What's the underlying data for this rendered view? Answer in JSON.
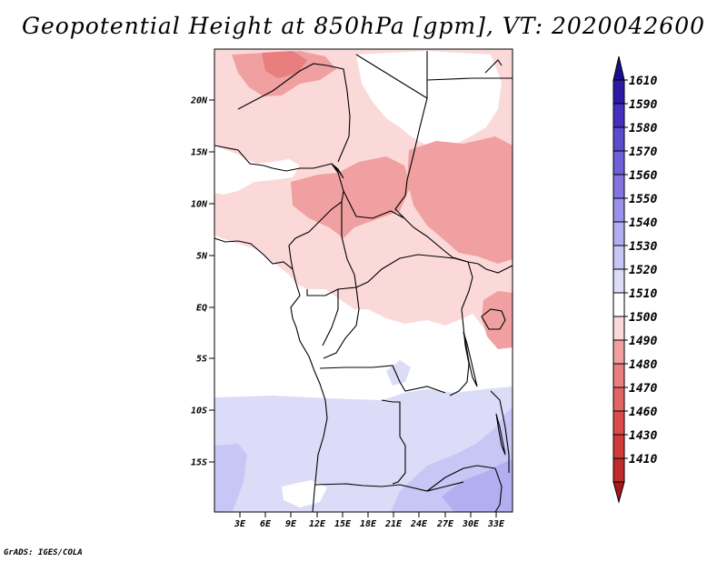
{
  "title": "Geopotential Height at 850hPa [gpm], VT: 2020042600",
  "credit": "GrADS: IGES/COLA",
  "colors": {
    "frame": "#000000",
    "c1410": "#a8171a",
    "c1430": "#bf2a2a",
    "c1440": "#d33a3a",
    "c1460": "#de4a4a",
    "c1470": "#e26464",
    "c1480": "#e97e7e",
    "c1490": "#f0a0a0",
    "c1500": "#fbd9d9",
    "c1510": "#ffffff",
    "c1520": "#dcdcf8",
    "c1530": "#c8c6f4",
    "c1540": "#b3aef0",
    "c1550": "#9b90ea",
    "c1560": "#8474e0",
    "c1570": "#6f60d8",
    "c1580": "#5b4bcd",
    "c1590": "#4630c0",
    "c1600": "#2d1aa6",
    "c1610": "#1a0f8f"
  },
  "y_ticks": [
    "20N",
    "15N",
    "10N",
    "5N",
    "EQ",
    "5S",
    "10S",
    "15S"
  ],
  "x_ticks": [
    "3E",
    "6E",
    "9E",
    "12E",
    "15E",
    "18E",
    "21E",
    "24E",
    "27E",
    "30E",
    "33E"
  ],
  "colorbar": {
    "labels": [
      "1610",
      "1590",
      "1580",
      "1570",
      "1560",
      "1550",
      "1540",
      "1530",
      "1520",
      "1510",
      "1500",
      "1490",
      "1480",
      "1470",
      "1460",
      "1430",
      "1410"
    ]
  }
}
